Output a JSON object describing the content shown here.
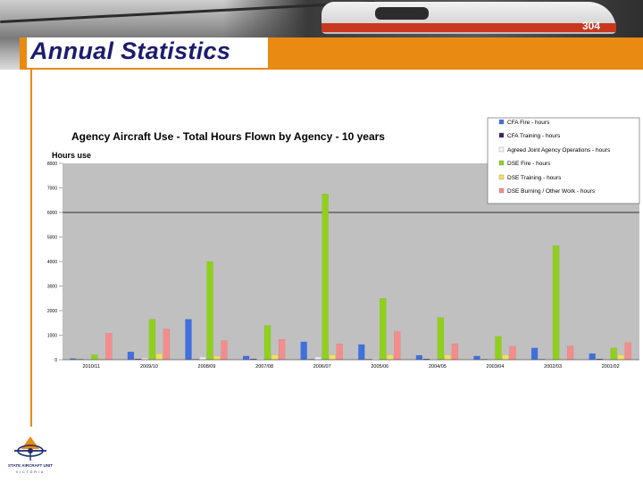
{
  "slide": {
    "title": "Annual Statistics",
    "banner_reg": "304",
    "logo_text": "STATE AIRCRAFT UNIT",
    "logo_sub": "VICTORIA"
  },
  "colors": {
    "accent_orange": "#e98a13",
    "title_navy": "#1c1c6e",
    "plot_bg": "#c0c0c0"
  },
  "chart_data": {
    "type": "bar",
    "title": "Agency Aircraft Use - Total Hours Flown by Agency - 10 years",
    "ylabel": "Hours use",
    "ylim": [
      0,
      8000
    ],
    "yticks": [
      "8000",
      "7000",
      "6000",
      "5000",
      "4000",
      "3000",
      "2000",
      "1000",
      "0"
    ],
    "grid": false,
    "legend_position": "top-right",
    "categories": [
      "2010/11",
      "2009/10",
      "2008/09",
      "2007/08",
      "2006/07",
      "2005/06",
      "2004/05",
      "2003/04",
      "2002/03",
      "2001/02"
    ],
    "series": [
      {
        "name": "CFA Fire - hours",
        "color": "#3f6fe0",
        "values": [
          50,
          320,
          1650,
          150,
          730,
          620,
          180,
          150,
          480,
          250
        ]
      },
      {
        "name": "CFA Training - hours",
        "color": "#3a1f6a",
        "values": [
          20,
          30,
          20,
          30,
          20,
          20,
          30,
          20,
          20,
          30
        ]
      },
      {
        "name": "Agreed Joint Agency Operations - hours",
        "color": "#f4f4f4",
        "values": [
          20,
          60,
          100,
          50,
          100,
          50,
          30,
          20,
          20,
          20
        ]
      },
      {
        "name": "DSE Fire - hours",
        "color": "#8fd11a",
        "values": [
          200,
          1650,
          4000,
          1400,
          6750,
          2500,
          1720,
          950,
          4650,
          480
        ]
      },
      {
        "name": "DSE Training - hours",
        "color": "#f0e060",
        "values": [
          30,
          250,
          150,
          200,
          200,
          200,
          200,
          200,
          30,
          200
        ]
      },
      {
        "name": "DSE Burning / Other Work - hours",
        "color": "#f58c8c",
        "values": [
          1080,
          1250,
          780,
          830,
          650,
          1150,
          650,
          550,
          560,
          700
        ]
      }
    ]
  }
}
